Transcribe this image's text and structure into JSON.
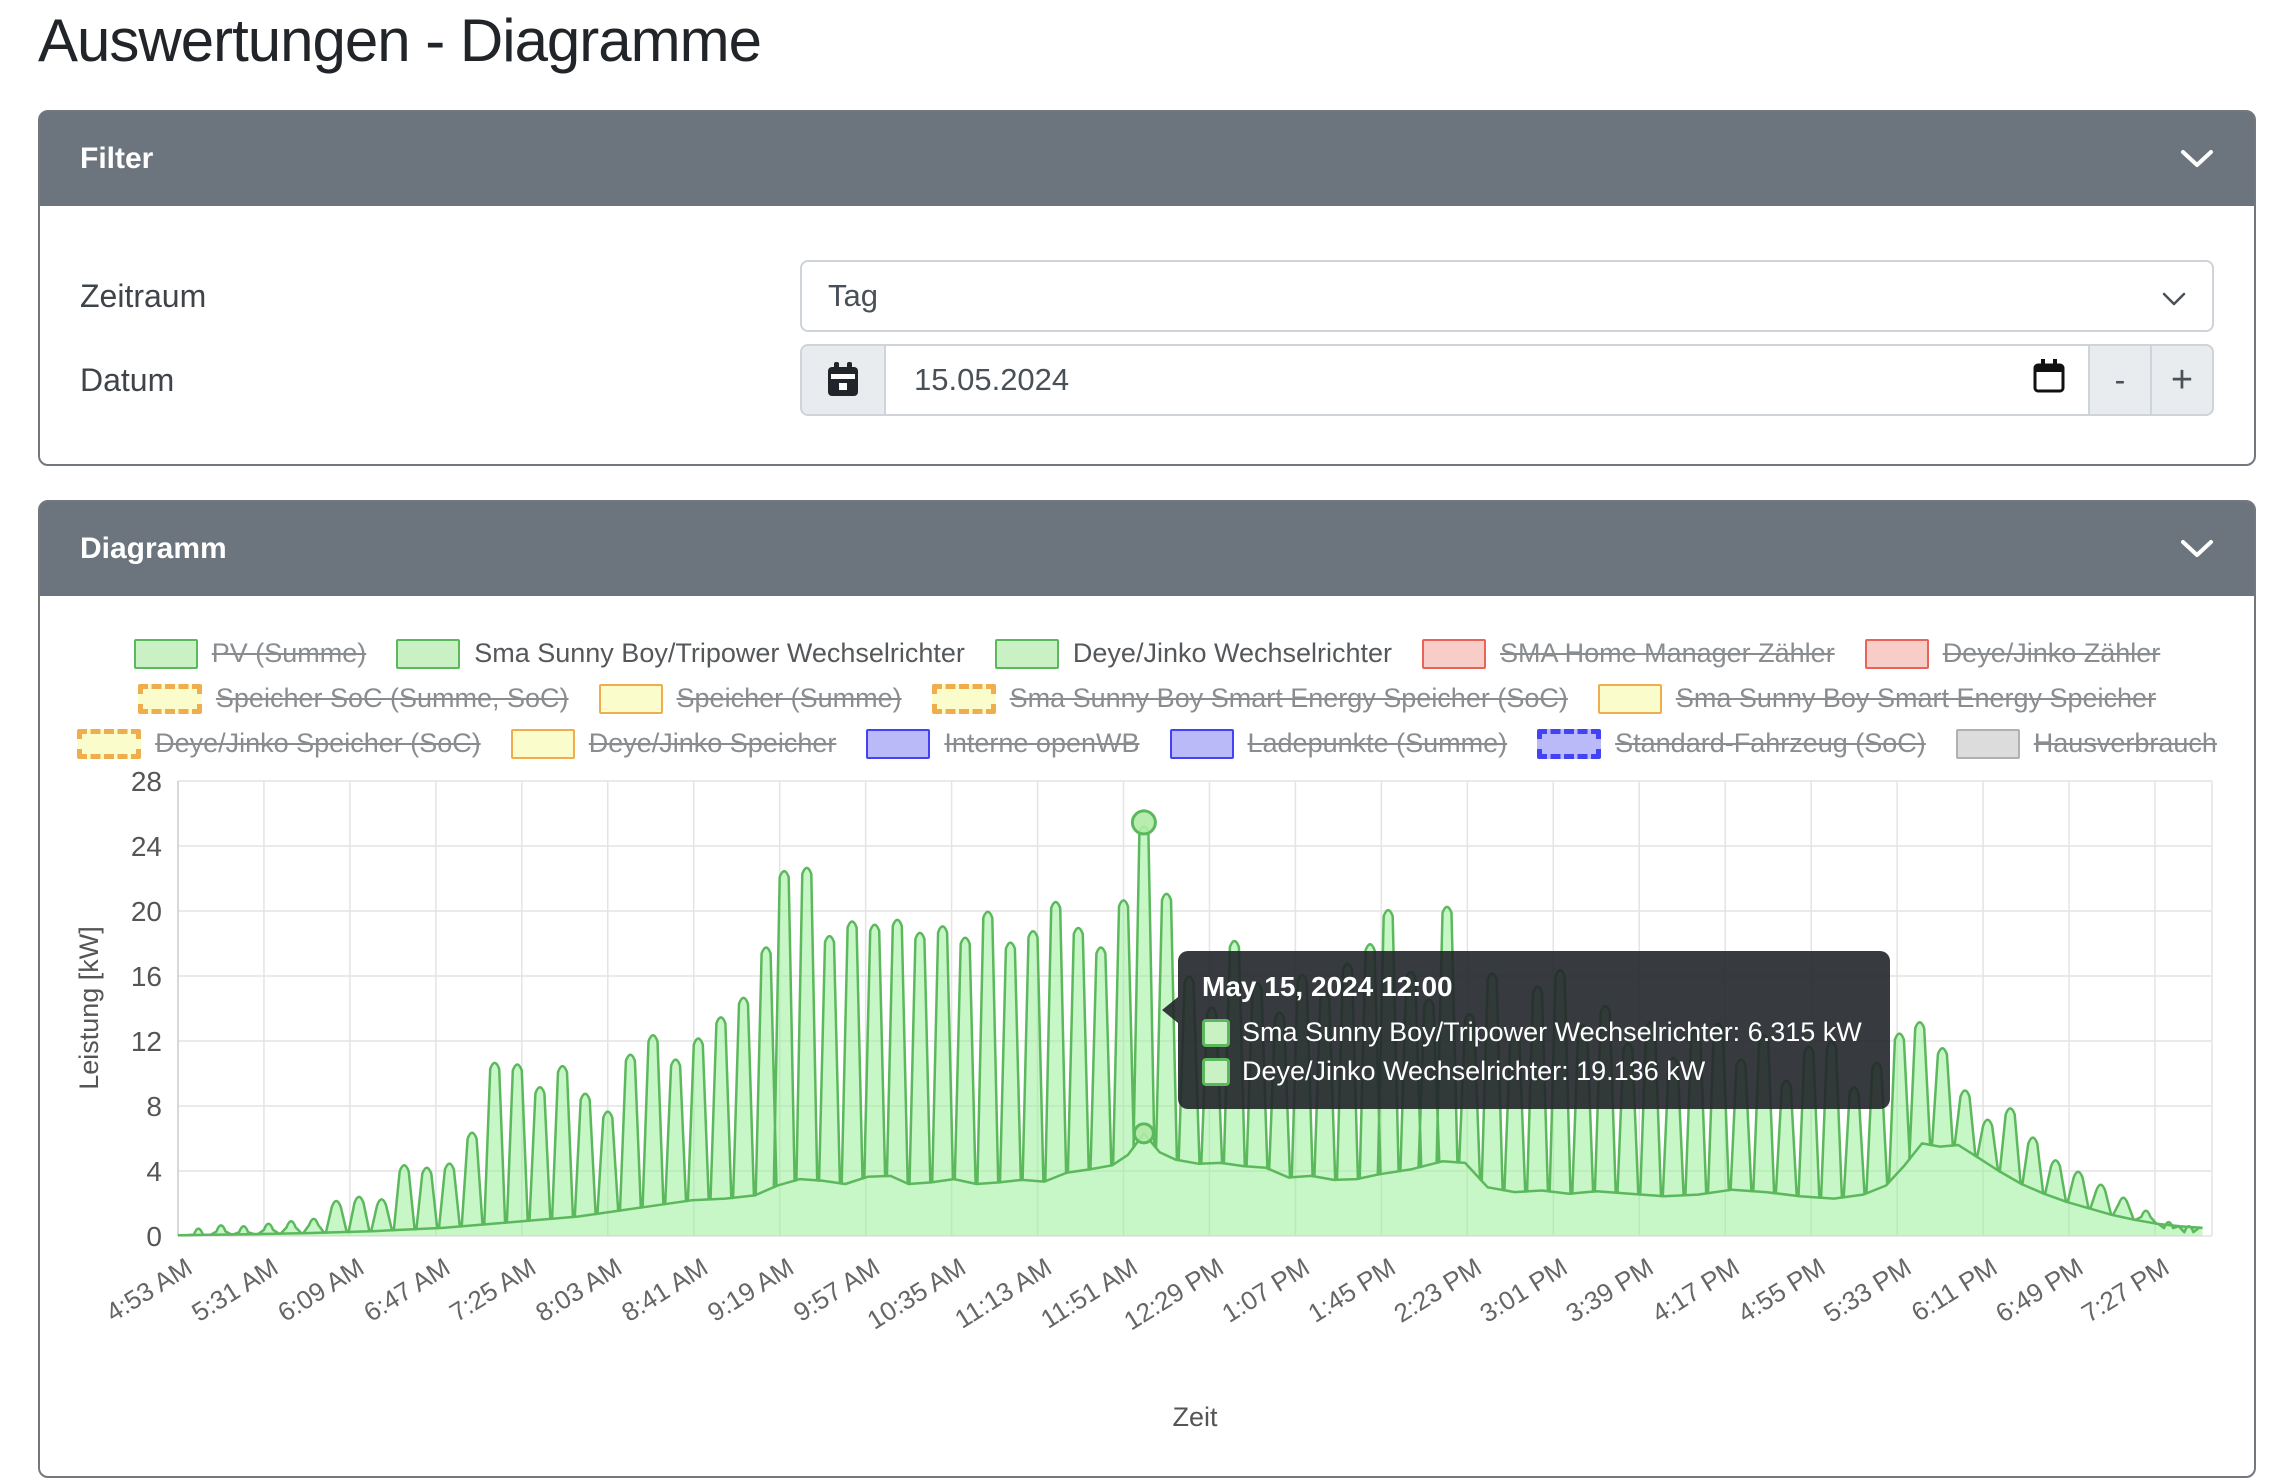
{
  "page": {
    "title": "Auswertungen - Diagramme"
  },
  "filter_panel": {
    "title": "Filter",
    "zeitraum_label": "Zeitraum",
    "zeitraum_value": "Tag",
    "datum_label": "Datum",
    "datum_value": "15.05.2024",
    "minus_label": "-",
    "plus_label": "+"
  },
  "diagram_panel": {
    "title": "Diagramm"
  },
  "tooltip": {
    "title": "May 15, 2024 12:00",
    "rows": [
      {
        "label": "Sma Sunny Boy/Tripower Wechselrichter",
        "value": "6.315 kW"
      },
      {
        "label": "Deye/Jinko Wechselrichter",
        "value": "19.136 kW"
      }
    ]
  },
  "colors": {
    "header_bg": "#6c757d",
    "card_border": "#73787e",
    "chart_stroke_green": "#5cb85c",
    "chart_fill_green": "rgba(144,238,144,0.5)",
    "grid": "#e4e4e4",
    "axis_text": "#666666",
    "legend": {
      "green": {
        "border": "#5cb85c",
        "fill": "#c9f1c4"
      },
      "red": {
        "border": "#e8645a",
        "fill": "#f8cdc8"
      },
      "yellow": {
        "border": "#f0ad4e",
        "fill": "#fbfccb"
      },
      "blue": {
        "border": "#4343f5",
        "fill": "#bbbaf8"
      },
      "gray": {
        "border": "#b0b0b0",
        "fill": "#dcdcdc"
      }
    }
  },
  "chart_data": {
    "type": "area",
    "stacked": true,
    "title": "",
    "xlabel": "Zeit",
    "ylabel": "Leistung [kW]",
    "ylim": [
      0,
      28
    ],
    "yticks": [
      0,
      4,
      8,
      12,
      16,
      20,
      24,
      28
    ],
    "xticks": [
      "4:53 AM",
      "5:31 AM",
      "6:09 AM",
      "6:47 AM",
      "7:25 AM",
      "8:03 AM",
      "8:41 AM",
      "9:19 AM",
      "9:57 AM",
      "10:35 AM",
      "11:13 AM",
      "11:51 AM",
      "12:29 PM",
      "1:07 PM",
      "1:45 PM",
      "2:23 PM",
      "3:01 PM",
      "3:39 PM",
      "4:17 PM",
      "4:55 PM",
      "5:33 PM",
      "6:11 PM",
      "6:49 PM",
      "7:27 PM"
    ],
    "x_start_minutes": 293,
    "x_tick_interval_minutes": 38,
    "legend_rows": [
      [
        {
          "label": "PV (Summe)",
          "color": "green",
          "dashed": false,
          "struck": true
        },
        {
          "label": "Sma Sunny Boy/Tripower Wechselrichter",
          "color": "green",
          "dashed": false,
          "struck": false
        },
        {
          "label": "Deye/Jinko Wechselrichter",
          "color": "green",
          "dashed": false,
          "struck": false
        },
        {
          "label": "SMA Home Manager Zähler",
          "color": "red",
          "dashed": false,
          "struck": true
        },
        {
          "label": "Deye/Jinko Zähler",
          "color": "red",
          "dashed": false,
          "struck": true
        }
      ],
      [
        {
          "label": "Speicher SoC (Summe, SoC)",
          "color": "yellow",
          "dashed": true,
          "struck": true
        },
        {
          "label": "Speicher (Summe)",
          "color": "yellow",
          "dashed": false,
          "struck": true
        },
        {
          "label": "Sma Sunny Boy Smart Energy Speicher (SoC)",
          "color": "yellow",
          "dashed": true,
          "struck": true
        },
        {
          "label": "Sma Sunny Boy Smart Energy Speicher",
          "color": "yellow",
          "dashed": false,
          "struck": true
        }
      ],
      [
        {
          "label": "Deye/Jinko Speicher (SoC)",
          "color": "yellow",
          "dashed": true,
          "struck": true
        },
        {
          "label": "Deye/Jinko Speicher",
          "color": "yellow",
          "dashed": false,
          "struck": true
        },
        {
          "label": "Interne openWB",
          "color": "blue",
          "dashed": false,
          "struck": true
        },
        {
          "label": "Ladepunkte (Summe)",
          "color": "blue",
          "dashed": false,
          "struck": true
        },
        {
          "label": "Standard-Fahrzeug (SoC)",
          "color": "blue",
          "dashed": true,
          "struck": true
        },
        {
          "label": "Hausverbrauch",
          "color": "gray",
          "dashed": false,
          "struck": true
        }
      ]
    ],
    "series": [
      {
        "name": "Sma Sunny Boy/Tripower Wechselrichter",
        "shape": "smooth",
        "points": [
          [
            293,
            0.05
          ],
          [
            320,
            0.1
          ],
          [
            350,
            0.18
          ],
          [
            380,
            0.3
          ],
          [
            410,
            0.5
          ],
          [
            440,
            0.85
          ],
          [
            470,
            1.2
          ],
          [
            500,
            1.8
          ],
          [
            520,
            2.2
          ],
          [
            535,
            2.3
          ],
          [
            548,
            2.5
          ],
          [
            558,
            3.1
          ],
          [
            568,
            3.5
          ],
          [
            578,
            3.4
          ],
          [
            588,
            3.2
          ],
          [
            598,
            3.65
          ],
          [
            608,
            3.7
          ],
          [
            616,
            3.2
          ],
          [
            626,
            3.3
          ],
          [
            636,
            3.5
          ],
          [
            646,
            3.2
          ],
          [
            656,
            3.3
          ],
          [
            666,
            3.45
          ],
          [
            676,
            3.35
          ],
          [
            686,
            3.9
          ],
          [
            696,
            4.1
          ],
          [
            706,
            4.35
          ],
          [
            713,
            5.0
          ],
          [
            720,
            6.315
          ],
          [
            727,
            5.15
          ],
          [
            734,
            4.7
          ],
          [
            744,
            4.45
          ],
          [
            754,
            4.5
          ],
          [
            764,
            4.3
          ],
          [
            774,
            4.2
          ],
          [
            784,
            3.6
          ],
          [
            794,
            3.7
          ],
          [
            804,
            3.45
          ],
          [
            814,
            3.5
          ],
          [
            824,
            3.8
          ],
          [
            838,
            4.1
          ],
          [
            852,
            4.6
          ],
          [
            862,
            4.5
          ],
          [
            872,
            3.0
          ],
          [
            884,
            2.7
          ],
          [
            896,
            2.8
          ],
          [
            908,
            2.6
          ],
          [
            920,
            2.75
          ],
          [
            935,
            2.6
          ],
          [
            950,
            2.45
          ],
          [
            965,
            2.55
          ],
          [
            980,
            2.85
          ],
          [
            995,
            2.7
          ],
          [
            1010,
            2.45
          ],
          [
            1025,
            2.3
          ],
          [
            1038,
            2.55
          ],
          [
            1048,
            3.1
          ],
          [
            1056,
            4.3
          ],
          [
            1064,
            5.7
          ],
          [
            1072,
            5.5
          ],
          [
            1080,
            5.6
          ],
          [
            1088,
            4.9
          ],
          [
            1098,
            4.0
          ],
          [
            1108,
            3.2
          ],
          [
            1118,
            2.6
          ],
          [
            1128,
            2.1
          ],
          [
            1138,
            1.7
          ],
          [
            1148,
            1.3
          ],
          [
            1158,
            1.0
          ],
          [
            1168,
            0.75
          ],
          [
            1178,
            0.6
          ],
          [
            1188,
            0.5
          ]
        ]
      },
      {
        "name": "Deye/Jinko Wechselrichter",
        "shape": "spikes",
        "note": "spike values are stacked totals (Sma + Deye), kW",
        "spikes": [
          [
            302,
            0.7
          ],
          [
            312,
            0.9
          ],
          [
            322,
            0.85
          ],
          [
            333,
            1.0
          ],
          [
            343,
            1.15
          ],
          [
            353,
            1.3
          ],
          [
            363,
            2.4
          ],
          [
            373,
            2.65
          ],
          [
            383,
            2.5
          ],
          [
            393,
            4.6
          ],
          [
            403,
            4.45
          ],
          [
            413,
            4.7
          ],
          [
            423,
            6.6
          ],
          [
            433,
            10.9
          ],
          [
            443,
            10.8
          ],
          [
            453,
            9.4
          ],
          [
            463,
            10.7
          ],
          [
            473,
            9.0
          ],
          [
            483,
            7.9
          ],
          [
            493,
            11.4
          ],
          [
            503,
            12.6
          ],
          [
            513,
            11.1
          ],
          [
            523,
            12.4
          ],
          [
            533,
            13.7
          ],
          [
            543,
            14.9
          ],
          [
            553,
            18.0
          ],
          [
            561,
            22.7
          ],
          [
            571,
            22.9
          ],
          [
            581,
            18.7
          ],
          [
            591,
            19.6
          ],
          [
            601,
            19.4
          ],
          [
            611,
            19.7
          ],
          [
            621,
            18.9
          ],
          [
            631,
            19.3
          ],
          [
            641,
            18.6
          ],
          [
            651,
            20.2
          ],
          [
            661,
            18.3
          ],
          [
            671,
            19.0
          ],
          [
            681,
            20.8
          ],
          [
            691,
            19.2
          ],
          [
            701,
            18.0
          ],
          [
            711,
            20.9
          ],
          [
            720,
            25.451
          ],
          [
            730,
            21.3
          ],
          [
            740,
            16.2
          ],
          [
            750,
            14.3
          ],
          [
            760,
            18.4
          ],
          [
            770,
            15.8
          ],
          [
            780,
            14.0
          ],
          [
            790,
            16.3
          ],
          [
            800,
            15.2
          ],
          [
            810,
            17.0
          ],
          [
            820,
            18.2
          ],
          [
            828,
            20.3
          ],
          [
            838,
            16.5
          ],
          [
            846,
            14.8
          ],
          [
            854,
            20.5
          ],
          [
            864,
            13.9
          ],
          [
            874,
            16.4
          ],
          [
            884,
            12.8
          ],
          [
            894,
            15.6
          ],
          [
            904,
            16.6
          ],
          [
            914,
            13.2
          ],
          [
            924,
            14.4
          ],
          [
            934,
            12.1
          ],
          [
            944,
            13.4
          ],
          [
            954,
            11.2
          ],
          [
            964,
            12.9
          ],
          [
            974,
            13.3
          ],
          [
            984,
            11.1
          ],
          [
            994,
            12.6
          ],
          [
            1004,
            9.8
          ],
          [
            1014,
            11.9
          ],
          [
            1024,
            12.2
          ],
          [
            1034,
            9.4
          ],
          [
            1044,
            10.9
          ],
          [
            1054,
            12.7
          ],
          [
            1063,
            13.4
          ],
          [
            1073,
            11.8
          ],
          [
            1083,
            9.2
          ],
          [
            1093,
            7.4
          ],
          [
            1103,
            8.1
          ],
          [
            1113,
            6.3
          ],
          [
            1123,
            4.9
          ],
          [
            1133,
            4.2
          ],
          [
            1143,
            3.4
          ],
          [
            1153,
            2.6
          ],
          [
            1163,
            1.8
          ],
          [
            1173,
            1.1
          ],
          [
            1182,
            0.85
          ]
        ]
      }
    ],
    "markers": [
      {
        "time": "12:00",
        "minutes": 720,
        "series": "total",
        "kw": 25.451
      },
      {
        "time": "12:00",
        "minutes": 720,
        "series": "Sma Sunny Boy/Tripower Wechselrichter",
        "kw": 6.315
      }
    ]
  }
}
